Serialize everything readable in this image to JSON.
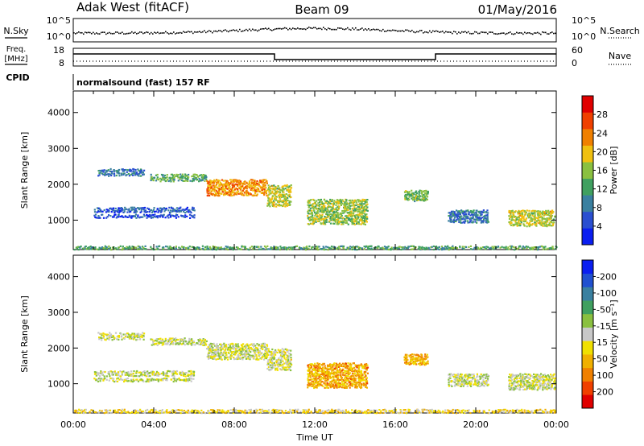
{
  "header": {
    "radar": "Adak West (fitACF)",
    "beam": "Beam 09",
    "date": "01/May/2016"
  },
  "summary": {
    "nsky_label": "N.Sky",
    "nsearch_label": "N.Search",
    "nsky_ticks": [
      "10^5",
      "10^0"
    ],
    "nsearch_ticks": [
      "10^5",
      "10^0"
    ],
    "freq_label_1": "Freq.",
    "freq_label_2": "[MHz]",
    "freq_ticks": [
      "18",
      "8"
    ],
    "nave_label": "Nave",
    "nave_ticks": [
      "60",
      "0"
    ],
    "cpid_label": "CPID",
    "cpid_text": "normalsound (fast) 157 RF"
  },
  "chart_data": [
    {
      "type": "heatmap",
      "title": "",
      "xlabel": "",
      "ylabel": "Slant Range [km]",
      "xlim": [
        0,
        24
      ],
      "ylim": [
        180,
        4600
      ],
      "yticks": [
        "1000",
        "2000",
        "3000",
        "4000"
      ],
      "colorbar": {
        "label": "Power [dB]",
        "ticks": [
          "4",
          "8",
          "12",
          "16",
          "20",
          "24",
          "28"
        ],
        "range": [
          0,
          30
        ],
        "colors": [
          "#0a1ef0",
          "#2a4fd0",
          "#3a80a0",
          "#40a060",
          "#8ac040",
          "#f0c010",
          "#f08000",
          "#f04000",
          "#e00000"
        ]
      },
      "regions": [
        {
          "t0": 1.0,
          "t1": 6.0,
          "r0": 1230,
          "r1": 1380,
          "level": 0.2
        },
        {
          "t0": 1.0,
          "t1": 6.0,
          "r0": 1080,
          "r1": 1180,
          "level": 0.15
        },
        {
          "t0": 1.2,
          "t1": 3.5,
          "r0": 2250,
          "r1": 2450,
          "level": 0.25
        },
        {
          "t0": 3.8,
          "t1": 6.6,
          "r0": 2100,
          "r1": 2300,
          "level": 0.4
        },
        {
          "t0": 6.6,
          "t1": 9.6,
          "r0": 1700,
          "r1": 2150,
          "level": 0.7
        },
        {
          "t0": 9.6,
          "t1": 10.8,
          "r0": 1400,
          "r1": 2000,
          "level": 0.55
        },
        {
          "t0": 11.6,
          "t1": 14.6,
          "r0": 900,
          "r1": 1600,
          "level": 0.5
        },
        {
          "t0": 16.4,
          "t1": 17.6,
          "r0": 1550,
          "r1": 1850,
          "level": 0.45
        },
        {
          "t0": 18.6,
          "t1": 20.6,
          "r0": 950,
          "r1": 1300,
          "level": 0.25
        },
        {
          "t0": 21.6,
          "t1": 23.9,
          "r0": 850,
          "r1": 1300,
          "level": 0.55
        },
        {
          "t0": 0.0,
          "t1": 24.0,
          "r0": 200,
          "r1": 300,
          "level": 0.4
        }
      ]
    },
    {
      "type": "heatmap",
      "title": "",
      "xlabel": "Time UT",
      "ylabel": "Slant Range [km]",
      "xlim": [
        0,
        24
      ],
      "ylim": [
        180,
        4600
      ],
      "xticks": [
        "00:00",
        "04:00",
        "08:00",
        "12:00",
        "16:00",
        "20:00",
        "00:00"
      ],
      "yticks": [
        "1000",
        "2000",
        "3000",
        "4000"
      ],
      "colorbar": {
        "label": "Velocity [m s⁻¹]",
        "ticks": [
          "200",
          "100",
          "50",
          "15",
          "-15",
          "-50",
          "-100",
          "-200"
        ],
        "range": [
          -250,
          250
        ],
        "colors": [
          "#e00000",
          "#f04000",
          "#f08000",
          "#f0b000",
          "#f0e000",
          "#c8c8c8",
          "#8ac040",
          "#40a060",
          "#3a80a0",
          "#2050d0",
          "#0a1ef0"
        ]
      },
      "regions": [
        {
          "t0": 1.0,
          "t1": 6.0,
          "r0": 1230,
          "r1": 1380,
          "level": 0.5
        },
        {
          "t0": 1.0,
          "t1": 6.0,
          "r0": 1080,
          "r1": 1180,
          "level": 0.5
        },
        {
          "t0": 1.2,
          "t1": 3.5,
          "r0": 2250,
          "r1": 2450,
          "level": 0.5
        },
        {
          "t0": 3.8,
          "t1": 6.6,
          "r0": 2100,
          "r1": 2300,
          "level": 0.5
        },
        {
          "t0": 6.6,
          "t1": 9.6,
          "r0": 1700,
          "r1": 2150,
          "level": 0.5
        },
        {
          "t0": 9.6,
          "t1": 10.8,
          "r0": 1400,
          "r1": 2000,
          "level": 0.48
        },
        {
          "t0": 11.6,
          "t1": 14.6,
          "r0": 900,
          "r1": 1600,
          "level": 0.3
        },
        {
          "t0": 16.4,
          "t1": 17.6,
          "r0": 1550,
          "r1": 1850,
          "level": 0.32
        },
        {
          "t0": 18.6,
          "t1": 20.6,
          "r0": 950,
          "r1": 1300,
          "level": 0.5
        },
        {
          "t0": 21.6,
          "t1": 23.9,
          "r0": 850,
          "r1": 1300,
          "level": 0.5
        },
        {
          "t0": 0.0,
          "t1": 24.0,
          "r0": 200,
          "r1": 300,
          "level": 0.4
        }
      ]
    }
  ]
}
